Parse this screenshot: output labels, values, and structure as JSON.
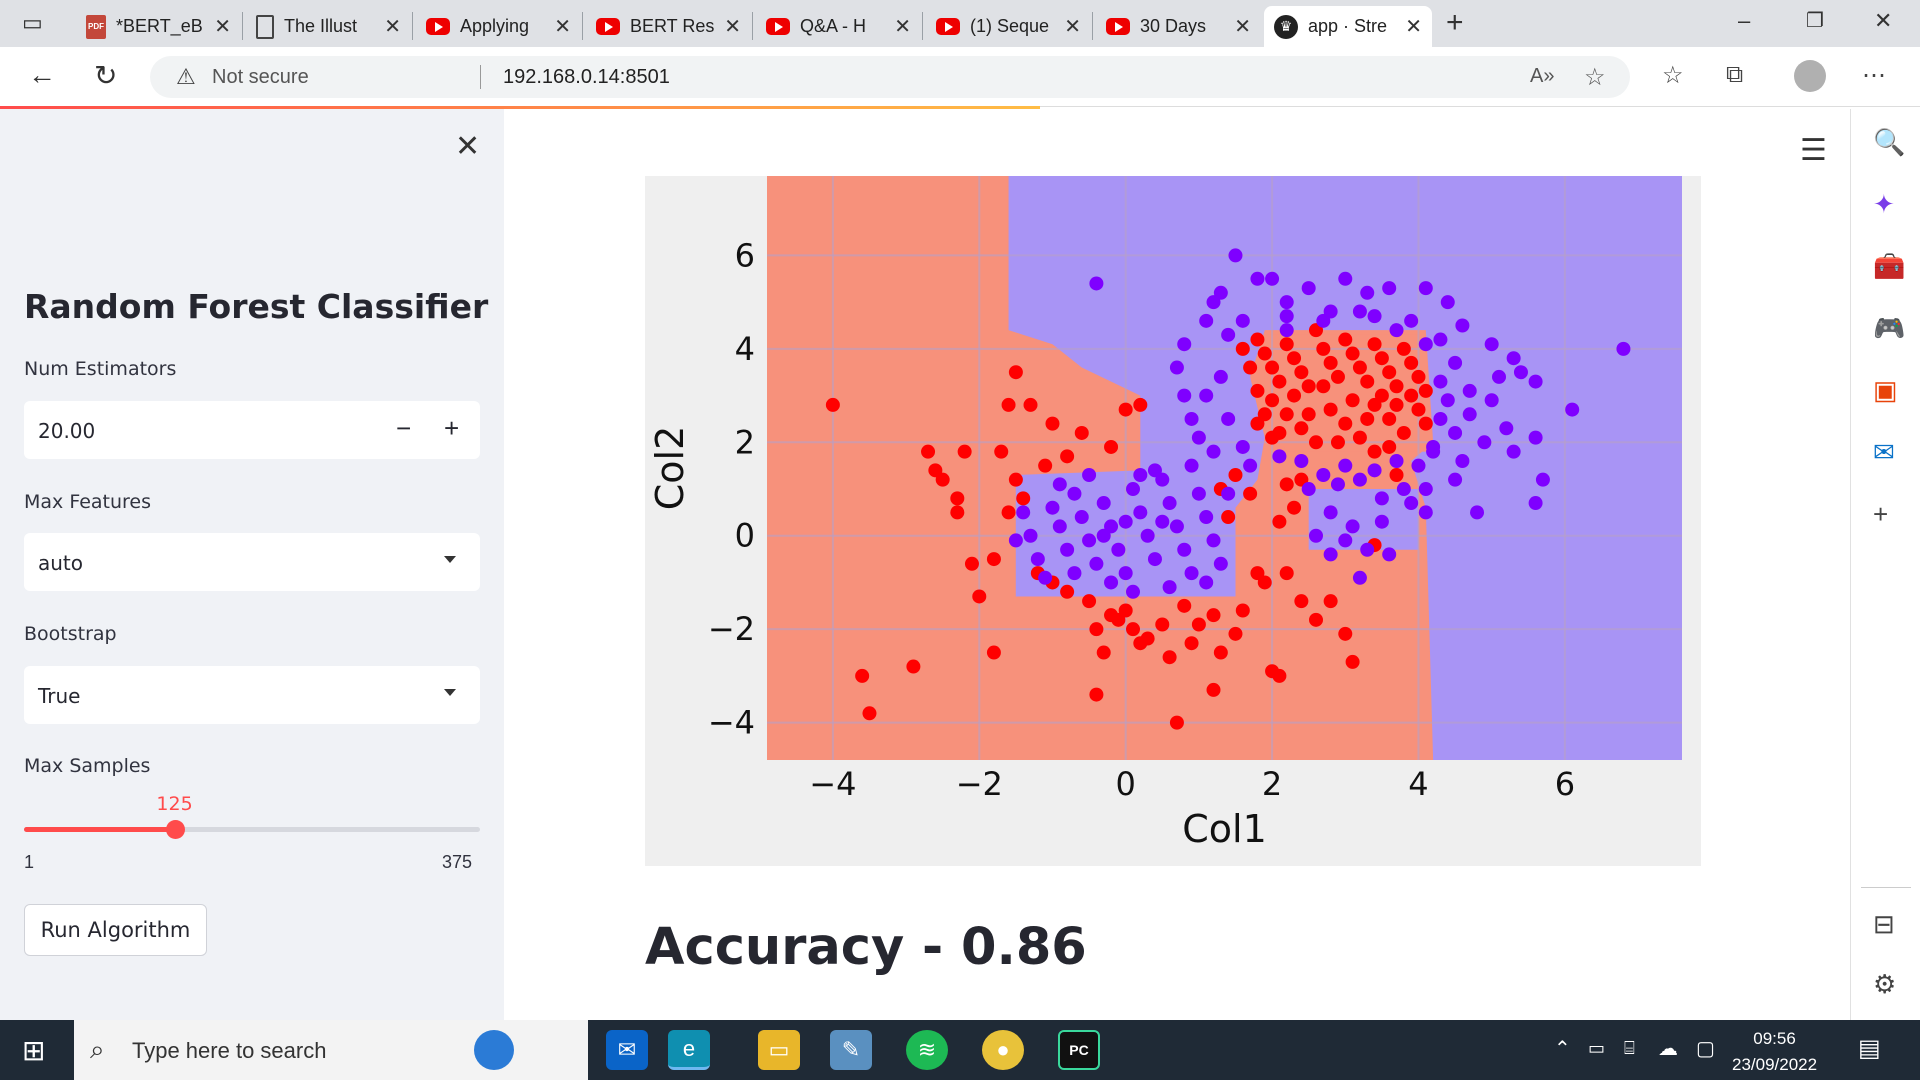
{
  "browser": {
    "tabs": [
      {
        "title": "*BERT_eB",
        "icon": "pdf-icon"
      },
      {
        "title": "The Illust",
        "icon": "document-icon"
      },
      {
        "title": "Applying",
        "icon": "youtube-icon"
      },
      {
        "title": "BERT Res",
        "icon": "youtube-icon"
      },
      {
        "title": "Q&A - H",
        "icon": "youtube-icon"
      },
      {
        "title": "(1) Seque",
        "icon": "youtube-icon"
      },
      {
        "title": "30 Days",
        "icon": "youtube-icon"
      },
      {
        "title": "app · Stre",
        "icon": "streamlit-icon",
        "active": true
      }
    ],
    "security_text": "Not secure",
    "url": "192.168.0.14:8501"
  },
  "sidebar": {
    "title": "Random Forest Classifier",
    "num_estimators": {
      "label": "Num Estimators",
      "value": "20.00"
    },
    "max_features": {
      "label": "Max Features",
      "value": "auto"
    },
    "bootstrap": {
      "label": "Bootstrap",
      "value": "True"
    },
    "max_samples": {
      "label": "Max Samples",
      "value": "125",
      "min": "1",
      "max": "375",
      "fraction": 0.332
    },
    "run_button": "Run Algorithm"
  },
  "main": {
    "accuracy_text": "Accuracy - 0.86"
  },
  "chart_data": {
    "type": "scatter",
    "xlabel": "Col1",
    "ylabel": "Col2",
    "xlim": [
      -4.9,
      7.6
    ],
    "ylim": [
      -4.8,
      7.7
    ],
    "xticks": [
      -4,
      -2,
      0,
      2,
      4,
      6
    ],
    "yticks": [
      -4,
      -2,
      0,
      2,
      4,
      6
    ],
    "xtick_labels": [
      "−4",
      "−2",
      "0",
      "2",
      "4",
      "6"
    ],
    "ytick_labels": [
      "−4",
      "−2",
      "0",
      "2",
      "4",
      "6"
    ],
    "grid": true,
    "colors": {
      "class0": "#ff0000",
      "class1": "#7f00ff",
      "region0": "#f7917b",
      "region1": "#a894f5"
    },
    "series": [
      {
        "class": 0,
        "points": [
          [
            -4,
            2.8
          ],
          [
            -3.6,
            -3
          ],
          [
            -2.9,
            -2.8
          ],
          [
            -2.7,
            1.8
          ],
          [
            -2.6,
            1.4
          ],
          [
            -2.5,
            1.2
          ],
          [
            -2.3,
            0.8
          ],
          [
            -2.3,
            0.5
          ],
          [
            -2.2,
            1.8
          ],
          [
            -2.1,
            -0.6
          ],
          [
            -2.0,
            -1.3
          ],
          [
            -1.8,
            -0.5
          ],
          [
            -1.7,
            1.8
          ],
          [
            -1.6,
            2.8
          ],
          [
            -1.6,
            0.5
          ],
          [
            -1.5,
            3.5
          ],
          [
            -1.5,
            1.2
          ],
          [
            -1.4,
            0.8
          ],
          [
            -1.3,
            2.8
          ],
          [
            -1.2,
            -0.8
          ],
          [
            -1.1,
            1.5
          ],
          [
            -1.0,
            2.4
          ],
          [
            -1.0,
            -1.0
          ],
          [
            -0.8,
            -1.2
          ],
          [
            -0.8,
            1.7
          ],
          [
            -0.6,
            2.2
          ],
          [
            -0.5,
            -1.4
          ],
          [
            -0.4,
            -2
          ],
          [
            -0.3,
            -2.5
          ],
          [
            -0.2,
            -1.7
          ],
          [
            -0.1,
            -1.8
          ],
          [
            0,
            2.7
          ],
          [
            0,
            -1.6
          ],
          [
            0.1,
            -2
          ],
          [
            0.2,
            -2.3
          ],
          [
            0.3,
            -2.2
          ],
          [
            0.5,
            -1.9
          ],
          [
            0.6,
            -2.6
          ],
          [
            0.8,
            -1.5
          ],
          [
            0.9,
            -2.3
          ],
          [
            1.0,
            -1.9
          ],
          [
            1.2,
            -1.7
          ],
          [
            1.3,
            -2.5
          ],
          [
            1.5,
            -2.1
          ],
          [
            1.6,
            -1.6
          ],
          [
            1.8,
            -0.8
          ],
          [
            1.9,
            -1
          ],
          [
            2,
            -2.9
          ],
          [
            2.2,
            -0.8
          ],
          [
            2.4,
            -1.4
          ],
          [
            2.6,
            -1.8
          ],
          [
            2.8,
            -1.4
          ],
          [
            3,
            -2.1
          ],
          [
            3.1,
            -2.7
          ],
          [
            3.4,
            -0.2
          ],
          [
            3.7,
            1.3
          ],
          [
            -3.5,
            -3.8
          ],
          [
            0.7,
            -4.0
          ],
          [
            -0.4,
            -3.4
          ],
          [
            1.2,
            -3.3
          ],
          [
            -1.8,
            -2.5
          ],
          [
            2.1,
            -3.0
          ],
          [
            0.2,
            2.8
          ],
          [
            -0.2,
            1.9
          ],
          [
            1.3,
            1.0
          ],
          [
            1.5,
            1.3
          ],
          [
            1.7,
            0.9
          ],
          [
            2.1,
            0.3
          ],
          [
            2.2,
            1.1
          ],
          [
            2.3,
            0.6
          ],
          [
            1.4,
            0.4
          ],
          [
            2.4,
            1.2
          ],
          [
            1.8,
            4.2
          ],
          [
            1.9,
            3.9
          ],
          [
            2.0,
            3.6
          ],
          [
            2.1,
            3.3
          ],
          [
            2.2,
            4.1
          ],
          [
            2.3,
            3.8
          ],
          [
            2.4,
            3.5
          ],
          [
            2.5,
            3.2
          ],
          [
            2.6,
            4.4
          ],
          [
            2.7,
            4.0
          ],
          [
            2.8,
            3.7
          ],
          [
            2.9,
            3.4
          ],
          [
            3.0,
            4.2
          ],
          [
            3.1,
            3.9
          ],
          [
            3.2,
            3.6
          ],
          [
            3.3,
            3.3
          ],
          [
            3.4,
            4.1
          ],
          [
            3.5,
            3.8
          ],
          [
            3.6,
            3.5
          ],
          [
            3.7,
            3.2
          ],
          [
            3.8,
            4.0
          ],
          [
            3.9,
            3.7
          ],
          [
            4.0,
            3.4
          ],
          [
            4.1,
            3.1
          ],
          [
            2.0,
            2.9
          ],
          [
            2.2,
            2.6
          ],
          [
            2.4,
            2.3
          ],
          [
            2.6,
            2.0
          ],
          [
            2.8,
            2.7
          ],
          [
            3.0,
            2.4
          ],
          [
            3.2,
            2.1
          ],
          [
            3.4,
            2.8
          ],
          [
            3.6,
            2.5
          ],
          [
            3.8,
            2.2
          ],
          [
            4.0,
            2.7
          ],
          [
            4.1,
            2.4
          ],
          [
            1.8,
            3.1
          ],
          [
            1.7,
            3.6
          ],
          [
            1.6,
            4.0
          ],
          [
            2.5,
            2.6
          ],
          [
            2.9,
            2.0
          ],
          [
            3.3,
            2.5
          ],
          [
            3.7,
            2.8
          ],
          [
            3.9,
            3.0
          ],
          [
            2.1,
            2.2
          ],
          [
            2.3,
            3.0
          ],
          [
            2.7,
            3.2
          ],
          [
            3.1,
            2.9
          ],
          [
            3.5,
            3.0
          ],
          [
            1.9,
            2.6
          ],
          [
            2.0,
            2.1
          ],
          [
            1.8,
            2.4
          ],
          [
            3.6,
            1.9
          ],
          [
            3.4,
            1.8
          ]
        ]
      },
      {
        "class": 1,
        "points": [
          [
            -0.4,
            5.4
          ],
          [
            1.5,
            6
          ],
          [
            1.8,
            5.5
          ],
          [
            1.3,
            5.2
          ],
          [
            2.2,
            5.0
          ],
          [
            2.0,
            5.5
          ],
          [
            2.5,
            5.3
          ],
          [
            3.0,
            5.5
          ],
          [
            3.3,
            5.2
          ],
          [
            3.6,
            5.3
          ],
          [
            4.1,
            5.3
          ],
          [
            4.4,
            5.0
          ],
          [
            4.6,
            4.5
          ],
          [
            5.0,
            4.1
          ],
          [
            5.3,
            3.8
          ],
          [
            5.6,
            3.3
          ],
          [
            6.8,
            4.0
          ],
          [
            6.1,
            2.7
          ],
          [
            5.6,
            2.1
          ],
          [
            5.7,
            1.2
          ],
          [
            5.6,
            0.7
          ],
          [
            4.8,
            0.5
          ],
          [
            4.5,
            2.2
          ],
          [
            4.7,
            2.6
          ],
          [
            5.0,
            2.9
          ],
          [
            5.2,
            2.3
          ],
          [
            4.3,
            3.3
          ],
          [
            4.4,
            2.9
          ],
          [
            4.6,
            1.6
          ],
          [
            4.2,
            1.8
          ],
          [
            4.0,
            1.5
          ],
          [
            3.8,
            1.0
          ],
          [
            3.5,
            0.8
          ],
          [
            3.2,
            1.2
          ],
          [
            3.0,
            1.5
          ],
          [
            2.7,
            1.3
          ],
          [
            2.5,
            1.0
          ],
          [
            2.8,
            0.5
          ],
          [
            3.1,
            0.2
          ],
          [
            3.3,
            -0.3
          ],
          [
            3.6,
            -0.4
          ],
          [
            3.2,
            -0.9
          ],
          [
            2.6,
            0.0
          ],
          [
            1.2,
            5.0
          ],
          [
            1.1,
            4.6
          ],
          [
            1.4,
            4.3
          ],
          [
            0.8,
            4.1
          ],
          [
            0.7,
            3.6
          ],
          [
            0.8,
            3.0
          ],
          [
            0.9,
            2.5
          ],
          [
            1.0,
            2.1
          ],
          [
            1.2,
            1.8
          ],
          [
            -1.4,
            0.5
          ],
          [
            -1.3,
            0.0
          ],
          [
            -1.2,
            -0.5
          ],
          [
            -1.0,
            0.6
          ],
          [
            -0.9,
            0.2
          ],
          [
            -0.8,
            -0.3
          ],
          [
            -0.7,
            0.9
          ],
          [
            -0.6,
            0.4
          ],
          [
            -0.5,
            -0.1
          ],
          [
            -0.4,
            -0.6
          ],
          [
            -0.3,
            0.7
          ],
          [
            -0.2,
            0.2
          ],
          [
            -0.1,
            -0.3
          ],
          [
            0,
            -0.8
          ],
          [
            0.1,
            1.0
          ],
          [
            0.2,
            0.5
          ],
          [
            0.3,
            0.0
          ],
          [
            0.4,
            -0.5
          ],
          [
            0.5,
            1.2
          ],
          [
            0.6,
            0.7
          ],
          [
            0.7,
            0.2
          ],
          [
            0.8,
            -0.3
          ],
          [
            0.9,
            -0.8
          ],
          [
            1.0,
            0.9
          ],
          [
            1.1,
            0.4
          ],
          [
            1.2,
            -0.1
          ],
          [
            1.3,
            -0.6
          ],
          [
            -1.1,
            -0.9
          ],
          [
            -0.2,
            -1.0
          ],
          [
            0.4,
            1.4
          ],
          [
            -0.5,
            1.3
          ],
          [
            0.9,
            1.5
          ],
          [
            1.4,
            0.9
          ],
          [
            -1.5,
            -0.1
          ],
          [
            -0.9,
            1.1
          ],
          [
            0.1,
            -1.2
          ],
          [
            0.6,
            -1.1
          ],
          [
            1.1,
            -1.0
          ],
          [
            -0.3,
            0.0
          ],
          [
            0.2,
            1.3
          ],
          [
            -0.7,
            -0.8
          ],
          [
            0.5,
            0.3
          ],
          [
            0.0,
            0.3
          ],
          [
            1.6,
            4.6
          ],
          [
            2.2,
            4.7
          ],
          [
            2.8,
            4.8
          ],
          [
            3.4,
            4.7
          ],
          [
            3.9,
            4.6
          ],
          [
            4.3,
            4.2
          ],
          [
            4.5,
            3.7
          ],
          [
            4.7,
            3.1
          ],
          [
            4.3,
            2.5
          ],
          [
            4.2,
            1.9
          ],
          [
            1.3,
            3.4
          ],
          [
            1.1,
            3.0
          ],
          [
            1.4,
            2.5
          ],
          [
            1.6,
            1.9
          ],
          [
            1.7,
            1.5
          ],
          [
            2.1,
            1.7
          ],
          [
            2.4,
            1.6
          ],
          [
            2.9,
            1.1
          ],
          [
            3.4,
            1.4
          ],
          [
            3.7,
            1.6
          ],
          [
            3.9,
            0.7
          ],
          [
            3.5,
            0.3
          ],
          [
            2.8,
            -0.4
          ],
          [
            4.1,
            0.5
          ],
          [
            3.0,
            -0.1
          ],
          [
            2.2,
            4.4
          ],
          [
            2.7,
            4.6
          ],
          [
            3.2,
            4.8
          ],
          [
            3.7,
            4.4
          ],
          [
            4.1,
            4.1
          ],
          [
            5.4,
            3.5
          ],
          [
            5.1,
            3.4
          ],
          [
            4.9,
            2.0
          ],
          [
            5.3,
            1.8
          ],
          [
            4.5,
            1.2
          ],
          [
            4.1,
            1.0
          ]
        ]
      }
    ]
  }
}
